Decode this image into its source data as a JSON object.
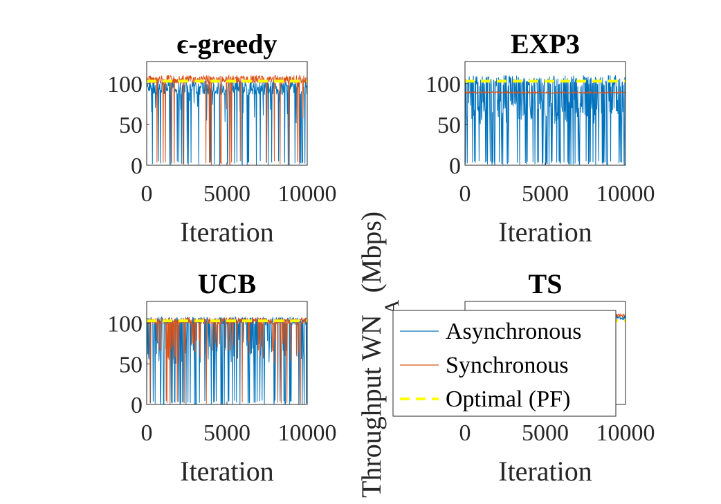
{
  "figure": {
    "ylabel_main": "Throughput WN",
    "ylabel_sub": "A",
    "ylabel_unit": "(Mbps)"
  },
  "colors": {
    "async": "#0072BD",
    "sync": "#D95319",
    "optimal": "#FFFF00"
  },
  "legend": {
    "position": "over lower-right subplot",
    "items": [
      {
        "label": "Asynchronous",
        "key": "async",
        "style": "solid"
      },
      {
        "label": "Synchronous",
        "key": "sync",
        "style": "solid"
      },
      {
        "label": "Optimal (PF)",
        "key": "optimal",
        "style": "dashed"
      }
    ]
  },
  "chart_data": [
    {
      "type": "line",
      "title": "ϵ-greedy",
      "xlabel": "Iteration",
      "ylabel": "",
      "xlim": [
        0,
        10000
      ],
      "ylim": [
        0,
        127
      ],
      "xticks": [
        "0",
        "5000",
        "10000"
      ],
      "yticks": [
        "0",
        "50",
        "100"
      ],
      "optimal": 103,
      "series": [
        {
          "name": "Asynchronous",
          "key": "async",
          "level": 104,
          "lowDrops": 0.55,
          "midDrops": 0.25,
          "dropFrac": 0.12,
          "noise": 18,
          "seed": 3
        },
        {
          "name": "Synchronous",
          "key": "sync",
          "level": 110,
          "lowDrops": 0.7,
          "midDrops": 0.1,
          "dropFrac": 0.05,
          "noise": 10,
          "seed": 7
        }
      ]
    },
    {
      "type": "line",
      "title": "EXP3",
      "xlabel": "Iteration",
      "ylabel": "",
      "xlim": [
        0,
        10000
      ],
      "ylim": [
        0,
        127
      ],
      "xticks": [
        "0",
        "5000",
        "10000"
      ],
      "yticks": [
        "0",
        "50",
        "100"
      ],
      "optimal": 103,
      "series": [
        {
          "name": "Asynchronous",
          "key": "async",
          "level": 110,
          "lowDrops": 0.35,
          "midDrops": 0.65,
          "dropFrac": 0.5,
          "noise": 14,
          "seed": 11
        },
        {
          "name": "Synchronous",
          "key": "sync",
          "level": 90,
          "lowDrops": 0.0,
          "midDrops": 0.0,
          "dropFrac": 0.0,
          "noise": 2,
          "seed": 13
        }
      ]
    },
    {
      "type": "line",
      "title": "UCB",
      "xlabel": "Iteration",
      "ylabel": "",
      "xlim": [
        0,
        10000
      ],
      "ylim": [
        0,
        127
      ],
      "xticks": [
        "0",
        "5000",
        "10000"
      ],
      "yticks": [
        "0",
        "50",
        "100"
      ],
      "optimal": 103,
      "series": [
        {
          "name": "Asynchronous",
          "key": "async",
          "level": 108,
          "lowDrops": 0.5,
          "midDrops": 0.5,
          "dropFrac": 0.3,
          "noise": 10,
          "seed": 17
        },
        {
          "name": "Synchronous",
          "key": "sync",
          "level": 107,
          "lowDrops": 0.2,
          "midDrops": 0.6,
          "dropFrac": 0.15,
          "noise": 8,
          "seed": 19
        }
      ]
    },
    {
      "type": "line",
      "title": "TS",
      "xlabel": "Iteration",
      "ylabel": "",
      "xlim": [
        0,
        10000
      ],
      "ylim": [
        0,
        127
      ],
      "xticks": [
        "0",
        "5000",
        "10000"
      ],
      "yticks": [
        "0",
        "50",
        "100"
      ],
      "optimal": 103,
      "series": [
        {
          "name": "Asynchronous",
          "key": "async",
          "level": 110,
          "lowDrops": 0.3,
          "midDrops": 0.2,
          "dropFrac": 0.02,
          "noise": 6,
          "seed": 23
        },
        {
          "name": "Synchronous",
          "key": "sync",
          "level": 112,
          "lowDrops": 0.2,
          "midDrops": 0.2,
          "dropFrac": 0.02,
          "noise": 5,
          "seed": 29
        }
      ]
    }
  ]
}
